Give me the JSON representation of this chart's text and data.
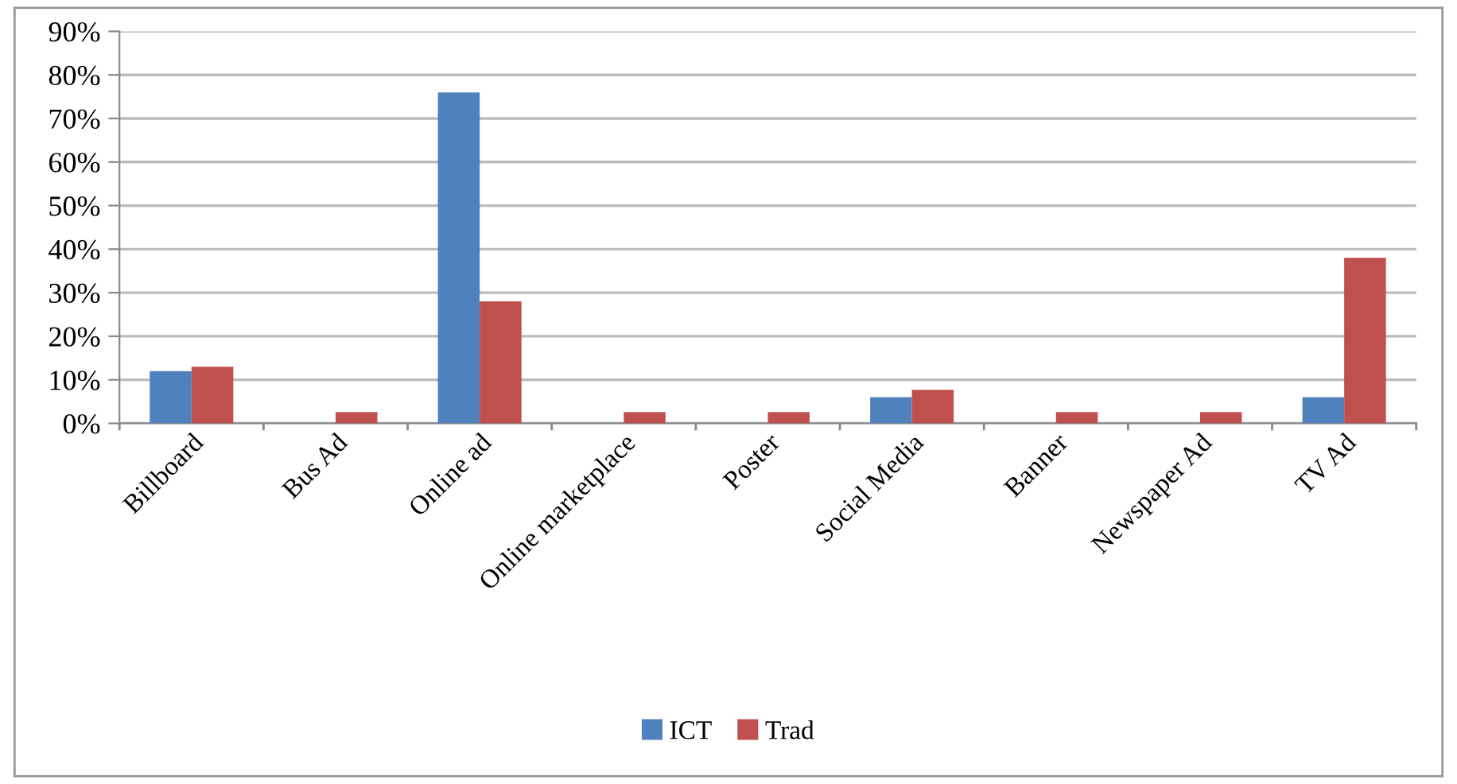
{
  "chart_data": {
    "type": "bar",
    "categories": [
      "Billboard",
      "Bus Ad",
      "Online ad",
      "Online marketplace",
      "Poster",
      "Social Media",
      "Banner",
      "Newspaper Ad",
      "TV Ad"
    ],
    "series": [
      {
        "name": "ICT",
        "color": "#4f81bd",
        "values": [
          12,
          0,
          76,
          0,
          0,
          6,
          0,
          0,
          6
        ]
      },
      {
        "name": "Trad",
        "color": "#c0504d",
        "values": [
          13,
          2.6,
          28,
          2.6,
          2.6,
          7.7,
          2.6,
          2.6,
          38
        ]
      }
    ],
    "ylim": [
      0,
      90
    ],
    "yticks": [
      {
        "value": 0,
        "label": "0%"
      },
      {
        "value": 10,
        "label": "10%"
      },
      {
        "value": 20,
        "label": "20%"
      },
      {
        "value": 30,
        "label": "30%"
      },
      {
        "value": 40,
        "label": "40%"
      },
      {
        "value": 50,
        "label": "50%"
      },
      {
        "value": 60,
        "label": "60%"
      },
      {
        "value": 70,
        "label": "70%"
      },
      {
        "value": 80,
        "label": "80%"
      },
      {
        "value": 90,
        "label": "90%"
      }
    ],
    "grid": "y",
    "legend": "bottom"
  }
}
